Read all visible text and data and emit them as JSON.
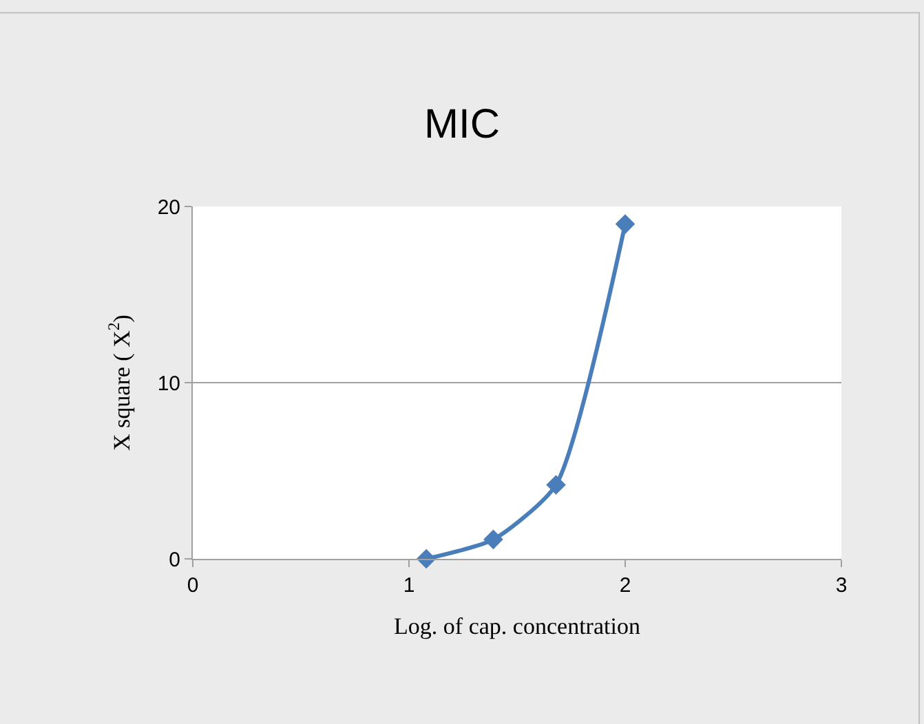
{
  "chart_data": {
    "type": "line",
    "title": "MIC",
    "xlabel": "Log. of cap. concentration",
    "ylabel": "X square ( X$^{2}$)",
    "series": [
      {
        "color": "#4a7ebb",
        "x": [
          1.08,
          1.39,
          1.68,
          2.0
        ],
        "values": [
          0,
          1.1,
          4.2,
          19
        ]
      }
    ],
    "xlim": [
      0,
      3
    ],
    "xticks": [
      0,
      1,
      2,
      3
    ],
    "ylim": [
      0,
      20
    ],
    "yticks": [
      0,
      10,
      20
    ],
    "grid": "y",
    "marker": "diamond",
    "line_style": "solid",
    "legend": false
  }
}
